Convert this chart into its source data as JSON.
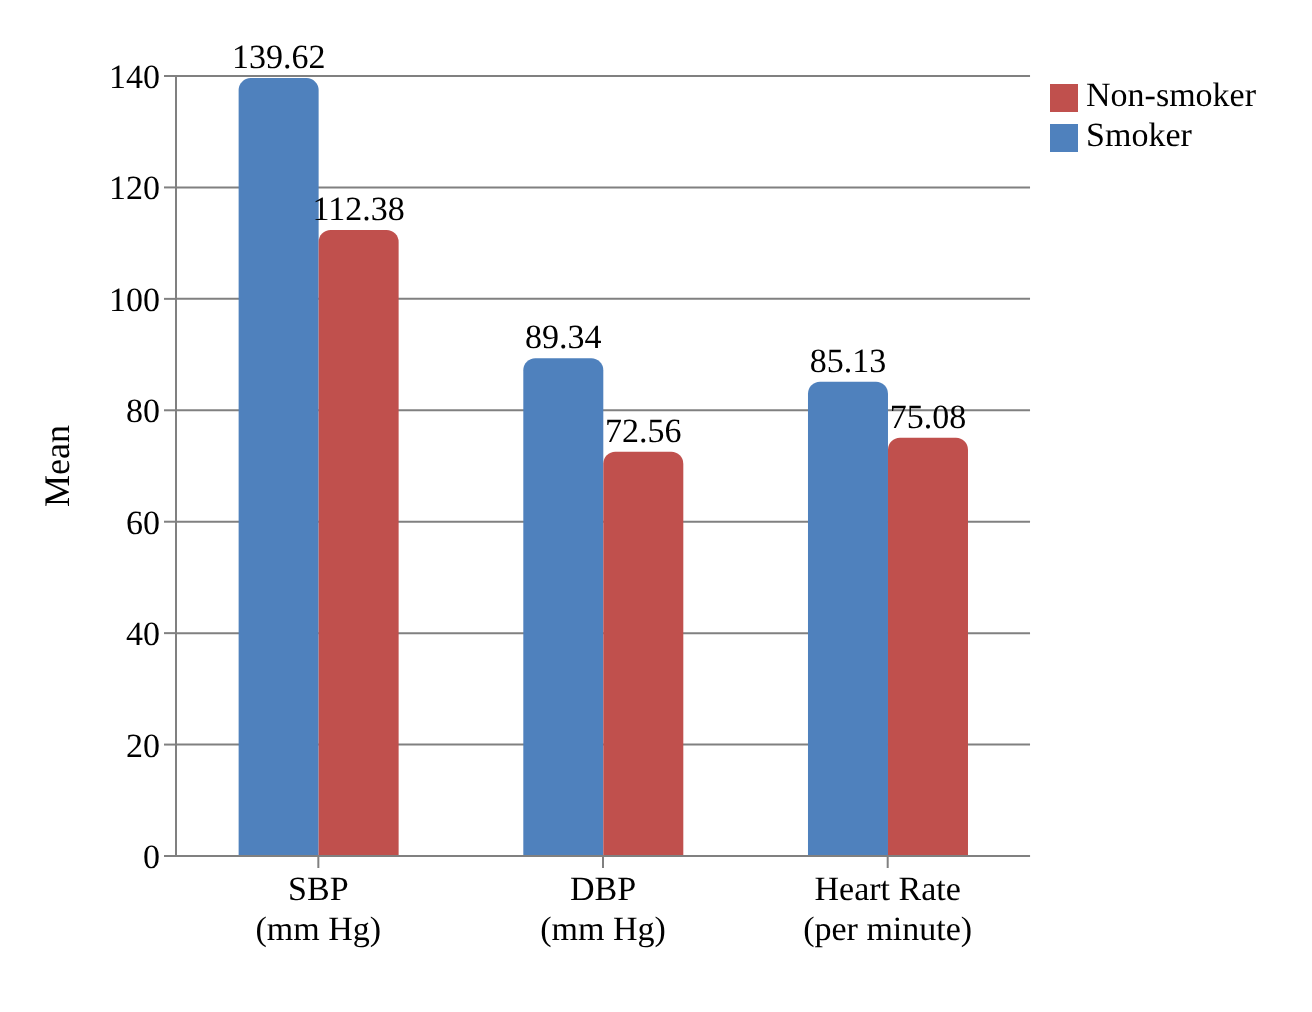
{
  "chart_data": {
    "type": "bar",
    "ylabel": "Mean",
    "categories": [
      "SBP\n(mm Hg)",
      "DBP\n(mm Hg)",
      "Heart Rate\n(per minute)"
    ],
    "series": [
      {
        "name": "Smoker",
        "color": "#4f81bd",
        "values": [
          139.62,
          89.34,
          85.13
        ]
      },
      {
        "name": "Non-smoker",
        "color": "#c0504d",
        "values": [
          112.38,
          72.56,
          75.08
        ]
      }
    ],
    "ylim": [
      0,
      140
    ],
    "yticks": [
      0,
      20,
      40,
      60,
      80,
      100,
      120,
      140
    ],
    "grid": "y",
    "legend": "top right",
    "data_labels": true
  }
}
